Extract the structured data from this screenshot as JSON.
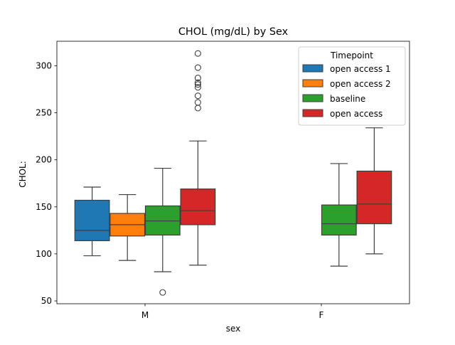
{
  "chart_data": {
    "type": "boxplot",
    "title": "CHOL (mg/dL) by Sex",
    "xlabel": "sex",
    "ylabel": "CHOL:",
    "categories": [
      "M",
      "F"
    ],
    "ylim": [
      47,
      326
    ],
    "yticks": [
      50,
      100,
      150,
      200,
      250,
      300
    ],
    "legend": {
      "title": "Timepoint",
      "position": "top-right"
    },
    "grid": false,
    "series": [
      {
        "name": "open access 1",
        "color": "#1f77b4",
        "boxes": [
          {
            "category": "M",
            "whisker_low": 98,
            "q1": 114,
            "median": 125,
            "q3": 157,
            "whisker_high": 171,
            "outliers": []
          }
        ]
      },
      {
        "name": "open access 2",
        "color": "#ff7f0e",
        "boxes": [
          {
            "category": "M",
            "whisker_low": 93,
            "q1": 119,
            "median": 131,
            "q3": 143,
            "whisker_high": 163,
            "outliers": []
          }
        ]
      },
      {
        "name": "baseline",
        "color": "#2ca02c",
        "boxes": [
          {
            "category": "M",
            "whisker_low": 81,
            "q1": 120,
            "median": 135,
            "q3": 151,
            "whisker_high": 191,
            "outliers": [
              59
            ]
          },
          {
            "category": "F",
            "whisker_low": 87,
            "q1": 120,
            "median": 132,
            "q3": 152,
            "whisker_high": 196,
            "outliers": []
          }
        ]
      },
      {
        "name": "open access",
        "color": "#d62728",
        "boxes": [
          {
            "category": "M",
            "whisker_low": 88,
            "q1": 131,
            "median": 146,
            "q3": 169,
            "whisker_high": 220,
            "outliers": [
              255,
              261,
              268,
              277,
              280,
              282,
              287,
              298,
              313
            ]
          },
          {
            "category": "F",
            "whisker_low": 100,
            "q1": 132,
            "median": 153,
            "q3": 188,
            "whisker_high": 234,
            "outliers": []
          }
        ]
      }
    ]
  }
}
